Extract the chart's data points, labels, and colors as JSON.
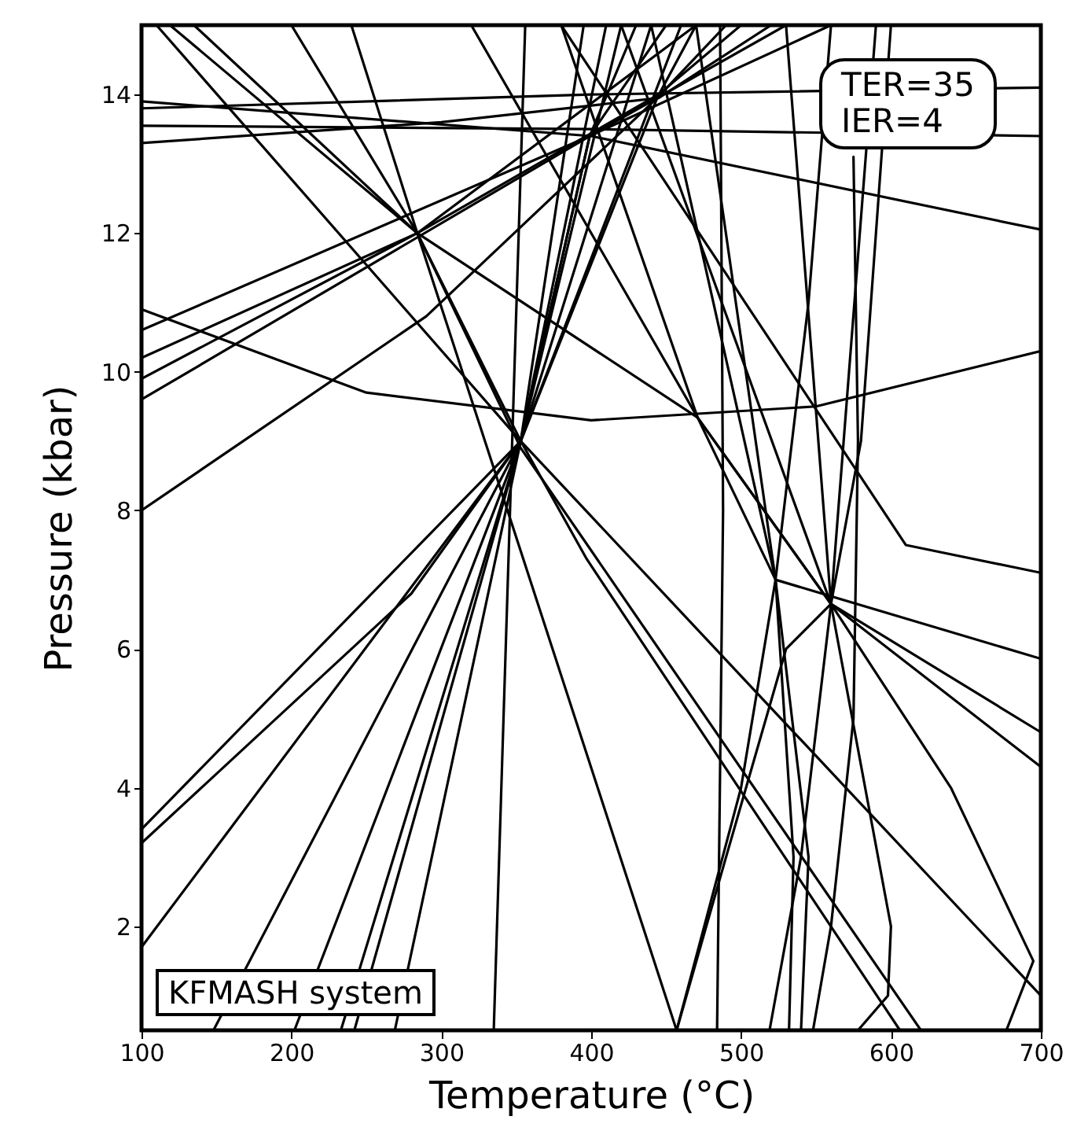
{
  "chart_data": {
    "type": "line",
    "xlabel": "Temperature (°C)",
    "ylabel": "Pressure (kbar)",
    "xlim": [
      100,
      700
    ],
    "ylim": [
      0.5,
      15
    ],
    "xticks": [
      100,
      200,
      300,
      400,
      500,
      600,
      700
    ],
    "yticks": [
      2,
      4,
      6,
      8,
      10,
      12,
      14
    ],
    "line_style": "solid",
    "annotations": [
      "TER=35",
      "IER=4",
      "KFMASH system"
    ],
    "series": [
      {
        "color": "#000000",
        "x": [
          100,
          400,
          700
        ],
        "values": [
          13.9,
          13.4,
          12.05
        ]
      },
      {
        "color": "#000000",
        "x": [
          100,
          400,
          700
        ],
        "values": [
          13.8,
          14.0,
          14.1
        ]
      },
      {
        "color": "#000000",
        "x": [
          100,
          400,
          700
        ],
        "values": [
          13.55,
          13.5,
          13.4
        ]
      },
      {
        "color": "#000000",
        "x": [
          100,
          300,
          445,
          520
        ],
        "values": [
          13.3,
          13.6,
          13.95,
          15
        ]
      },
      {
        "color": "#000000",
        "x": [
          100,
          250,
          400,
          550,
          700
        ],
        "values": [
          10.9,
          9.7,
          9.3,
          9.5,
          10.3
        ]
      },
      {
        "color": "#000000",
        "x": [
          100,
          399,
          530
        ],
        "values": [
          10.6,
          13.4,
          15
        ]
      },
      {
        "color": "#000000",
        "x": [
          100,
          284,
          470
        ],
        "values": [
          10.2,
          12,
          15
        ]
      },
      {
        "color": "#000000",
        "x": [
          100,
          284,
          445,
          500
        ],
        "values": [
          9.9,
          12,
          14,
          15
        ]
      },
      {
        "color": "#000000",
        "x": [
          100,
          399,
          560
        ],
        "values": [
          9.6,
          13.4,
          15
        ]
      },
      {
        "color": "#000000",
        "x": [
          100,
          290,
          444,
          490
        ],
        "values": [
          8.0,
          10.8,
          13.95,
          15
        ]
      },
      {
        "color": "#000000",
        "x": [
          100,
          353,
          444,
          470
        ],
        "values": [
          3.4,
          9,
          13.95,
          15
        ]
      },
      {
        "color": "#000000",
        "x": [
          100,
          280,
          353,
          440
        ],
        "values": [
          3.2,
          6.8,
          9,
          15
        ]
      },
      {
        "color": "#000000",
        "x": [
          100,
          353,
          399,
          450
        ],
        "values": [
          1.7,
          9,
          13.4,
          15
        ]
      },
      {
        "color": "#000000",
        "x": [
          148,
          353,
          399,
          430
        ],
        "values": [
          0.5,
          9,
          13.4,
          15
        ]
      },
      {
        "color": "#000000",
        "x": [
          202,
          353,
          410
        ],
        "values": [
          0.5,
          9,
          15
        ]
      },
      {
        "color": "#000000",
        "x": [
          233,
          353,
          395
        ],
        "values": [
          0.5,
          9,
          15
        ]
      },
      {
        "color": "#000000",
        "x": [
          242,
          353,
          460
        ],
        "values": [
          0.5,
          9,
          15
        ]
      },
      {
        "color": "#000000",
        "x": [
          269,
          353,
          420
        ],
        "values": [
          0.5,
          9,
          15
        ]
      },
      {
        "color": "#000000",
        "x": [
          335,
          356
        ],
        "values": [
          0.5,
          15
        ]
      },
      {
        "color": "#000000",
        "x": [
          119,
          284,
          353,
          397,
          606
        ],
        "values": [
          15,
          12,
          9,
          7.3,
          0.5
        ]
      },
      {
        "color": "#000000",
        "x": [
          135,
          284,
          353,
          620
        ],
        "values": [
          15,
          12,
          8.9,
          0.5
        ]
      },
      {
        "color": "#000000",
        "x": [
          110,
          353,
          700
        ],
        "values": [
          15,
          9,
          1.0
        ]
      },
      {
        "color": "#000000",
        "x": [
          240,
          284,
          457
        ],
        "values": [
          15,
          12,
          0.5
        ]
      },
      {
        "color": "#000000",
        "x": [
          200,
          284,
          471,
          523,
          700
        ],
        "values": [
          15,
          12,
          9.34,
          7.0,
          5.86
        ]
      },
      {
        "color": "#000000",
        "x": [
          320,
          471,
          560,
          700
        ],
        "values": [
          15,
          9.34,
          6.65,
          4.8
        ]
      },
      {
        "color": "#000000",
        "x": [
          380,
          471,
          560,
          700
        ],
        "values": [
          15,
          9.34,
          6.65,
          4.3
        ]
      },
      {
        "color": "#000000",
        "x": [
          420,
          560,
          640,
          695,
          677
        ],
        "values": [
          15,
          6.65,
          4,
          1.5,
          0.5
        ]
      },
      {
        "color": "#000000",
        "x": [
          486,
          488,
          484
        ],
        "values": [
          15,
          8,
          0.5
        ]
      },
      {
        "color": "#000000",
        "x": [
          440,
          523,
          535,
          532
        ],
        "values": [
          15,
          7.0,
          3,
          0.5
        ]
      },
      {
        "color": "#000000",
        "x": [
          470,
          523,
          545,
          540
        ],
        "values": [
          15,
          7.0,
          3,
          0.5
        ]
      },
      {
        "color": "#000000",
        "x": [
          590,
          560,
          540,
          519
        ],
        "values": [
          15,
          6.65,
          3,
          0.5
        ]
      },
      {
        "color": "#000000",
        "x": [
          575,
          578,
          575,
          560,
          548
        ],
        "values": [
          13.1,
          9,
          5,
          2,
          0.5
        ]
      },
      {
        "color": "#000000",
        "x": [
          457,
          500,
          523,
          545,
          560
        ],
        "values": [
          0.5,
          4,
          7.0,
          11,
          15
        ]
      },
      {
        "color": "#000000",
        "x": [
          457,
          490,
          530,
          560,
          580,
          600
        ],
        "values": [
          0.5,
          3,
          6,
          6.65,
          9,
          15
        ]
      },
      {
        "color": "#000000",
        "x": [
          530,
          560,
          600,
          598,
          578
        ],
        "values": [
          15,
          6.65,
          2,
          1,
          0.5
        ]
      },
      {
        "color": "#000000",
        "x": [
          380,
          610,
          700
        ],
        "values": [
          15,
          7.5,
          7.1
        ]
      }
    ]
  }
}
